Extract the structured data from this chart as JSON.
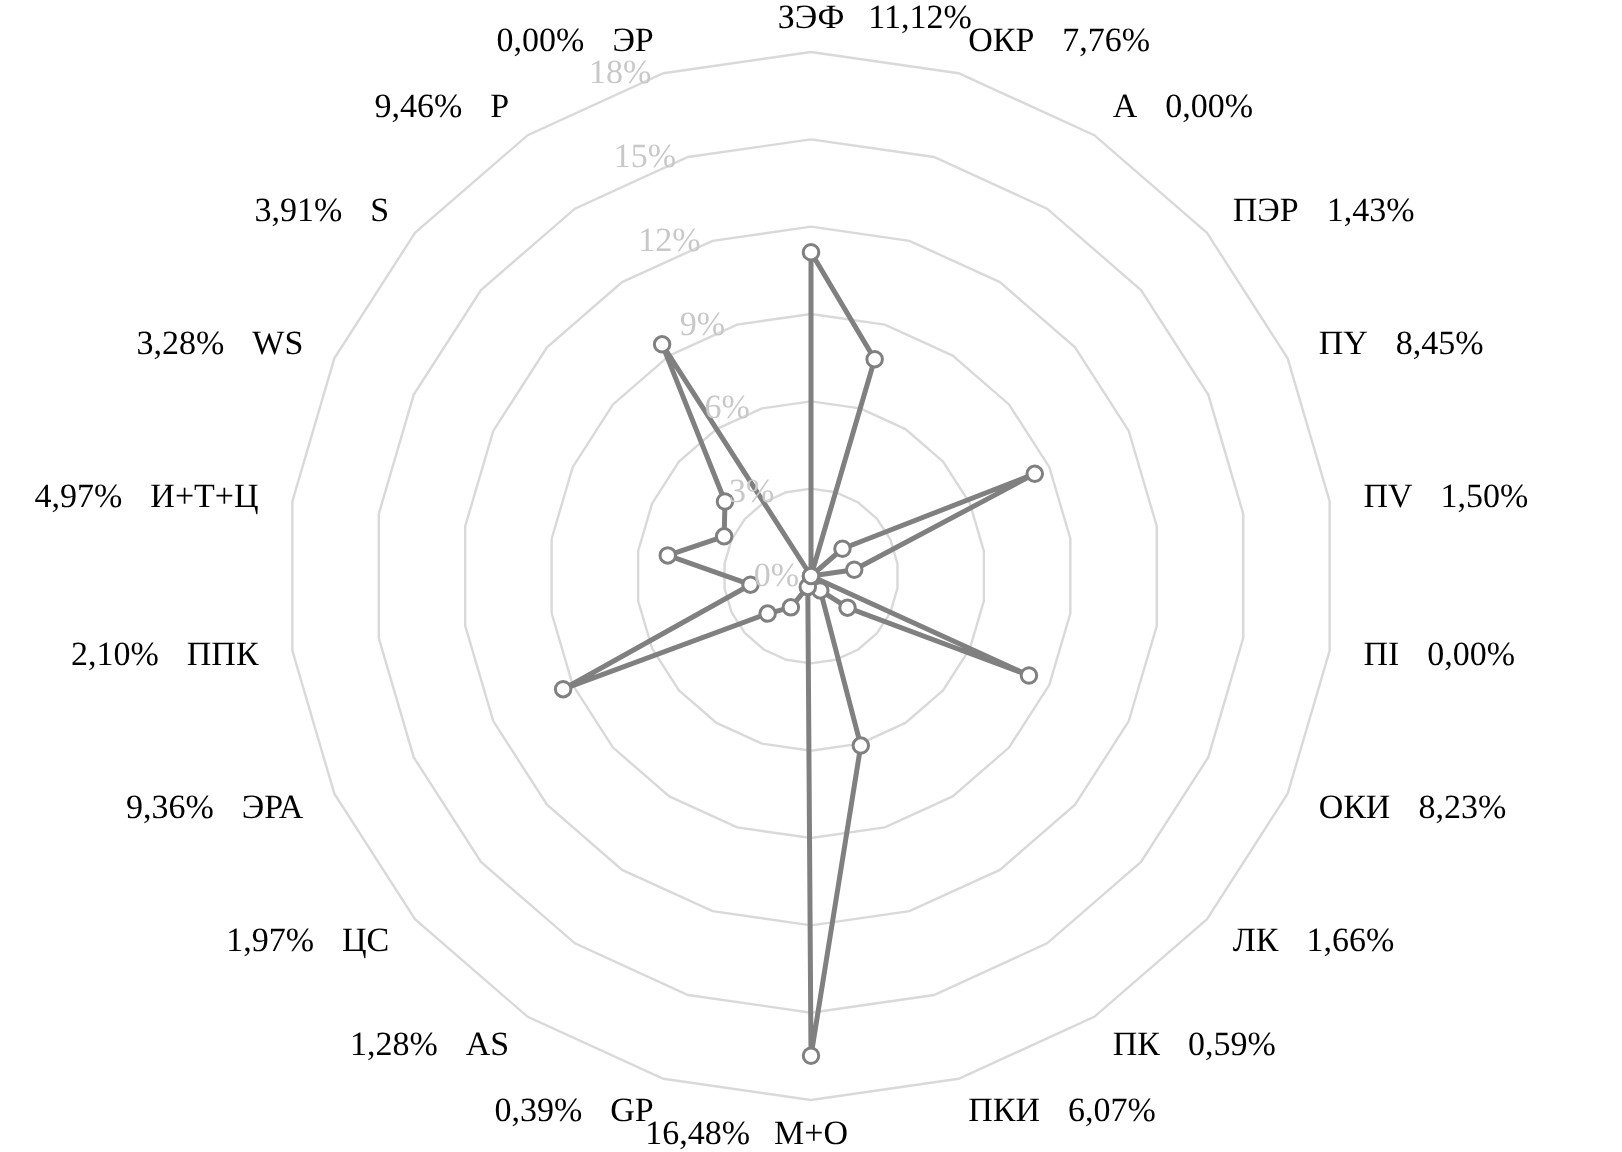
{
  "chart_data": {
    "type": "radar",
    "categories": [
      "ЗЭФ",
      "ОКР",
      "А",
      "ПЭР",
      "ПY",
      "ПV",
      "ПI",
      "ОКИ",
      "ЛК",
      "ПК",
      "ПКИ",
      "М+О",
      "GP",
      "AS",
      "ЦС",
      "ЭРА",
      "ППК",
      "И+Т+Ц",
      "WS",
      "S",
      "Р",
      "ЭР"
    ],
    "series": [
      {
        "color": "#808080",
        "values": [
          11.12,
          7.76,
          0.0,
          1.43,
          8.45,
          1.5,
          0.0,
          8.23,
          1.66,
          0.59,
          6.07,
          16.48,
          0.39,
          1.28,
          1.97,
          9.36,
          2.1,
          4.97,
          3.28,
          3.91,
          9.46,
          0.0
        ]
      }
    ],
    "annotations": [
      "11,12%",
      "7,76%",
      "0,00%",
      "1,43%",
      "8,45%",
      "1,50%",
      "0,00%",
      "8,23%",
      "1,66%",
      "0,59%",
      "6,07%",
      "16,48%",
      "0,39%",
      "1,28%",
      "1,97%",
      "9,36%",
      "2,10%",
      "4,97%",
      "3,28%",
      "3,91%",
      "9,46%",
      "0,00%"
    ],
    "ylim": [
      0,
      18
    ],
    "yticks": [
      {
        "value": 0,
        "label": "0%"
      },
      {
        "value": 3,
        "label": "3%"
      },
      {
        "value": 6,
        "label": "6%"
      },
      {
        "value": 9,
        "label": "9%"
      },
      {
        "value": 12,
        "label": "12%"
      },
      {
        "value": 15,
        "label": "15%"
      },
      {
        "value": 18,
        "label": "18%"
      }
    ],
    "grid": true,
    "marker": "circle"
  }
}
